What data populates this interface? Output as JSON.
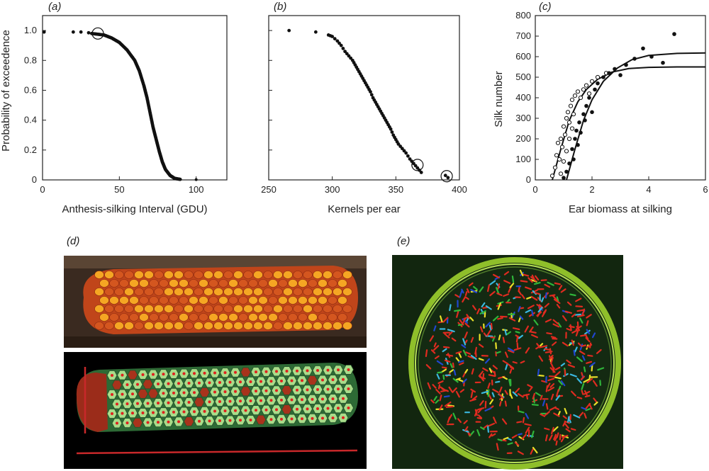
{
  "panels": {
    "a": "(a)",
    "b": "(b)",
    "c": "(c)",
    "d": "(d)",
    "e": "(e)"
  },
  "chart_data": [
    {
      "type": "scatter",
      "panel": "a",
      "xlabel": "Anthesis-silking Interval (GDU)",
      "ylabel": "Probability of exceedence",
      "xlim": [
        0,
        120
      ],
      "ylim": [
        0,
        1.1
      ],
      "xticks": [
        "0",
        "50",
        "100"
      ],
      "yticks": [
        "0",
        "0.2",
        "0.4",
        "0.6",
        "0.8",
        "1.0"
      ],
      "sparse_points": [
        [
          1,
          0.99
        ],
        [
          20,
          0.99
        ],
        [
          25,
          0.99
        ],
        [
          30,
          0.985
        ]
      ],
      "dense_curve": [
        [
          32,
          0.98
        ],
        [
          40,
          0.97
        ],
        [
          45,
          0.95
        ],
        [
          50,
          0.92
        ],
        [
          55,
          0.87
        ],
        [
          60,
          0.8
        ],
        [
          63,
          0.73
        ],
        [
          66,
          0.63
        ],
        [
          68,
          0.55
        ],
        [
          70,
          0.45
        ],
        [
          72,
          0.35
        ],
        [
          74,
          0.27
        ],
        [
          76,
          0.19
        ],
        [
          78,
          0.12
        ],
        [
          80,
          0.07
        ],
        [
          83,
          0.03
        ],
        [
          86,
          0.01
        ],
        [
          90,
          0.003
        ]
      ],
      "outliers": [
        [
          100,
          0.002
        ]
      ],
      "circled": [
        [
          36,
          0.98
        ]
      ]
    },
    {
      "type": "scatter",
      "panel": "b",
      "xlabel": "Kernels per ear",
      "ylabel": "",
      "xlim": [
        250,
        400
      ],
      "ylim": [
        0,
        1.1
      ],
      "xticks": [
        "250",
        "300",
        "350",
        "400"
      ],
      "points": [
        [
          266,
          1.0
        ],
        [
          287,
          0.99
        ],
        [
          297,
          0.97
        ],
        [
          300,
          0.96
        ],
        [
          304,
          0.93
        ],
        [
          307,
          0.9
        ],
        [
          310,
          0.86
        ],
        [
          313,
          0.83
        ],
        [
          316,
          0.8
        ],
        [
          318,
          0.77
        ],
        [
          320,
          0.74
        ],
        [
          322,
          0.71
        ],
        [
          324,
          0.68
        ],
        [
          326,
          0.65
        ],
        [
          328,
          0.62
        ],
        [
          330,
          0.59
        ],
        [
          332,
          0.55
        ],
        [
          334,
          0.52
        ],
        [
          336,
          0.49
        ],
        [
          338,
          0.46
        ],
        [
          340,
          0.43
        ],
        [
          342,
          0.4
        ],
        [
          344,
          0.37
        ],
        [
          346,
          0.34
        ],
        [
          348,
          0.3
        ],
        [
          350,
          0.27
        ],
        [
          352,
          0.24
        ],
        [
          355,
          0.21
        ],
        [
          358,
          0.18
        ],
        [
          361,
          0.14
        ],
        [
          364,
          0.11
        ],
        [
          367,
          0.08
        ],
        [
          370,
          0.05
        ],
        [
          389,
          0.03
        ],
        [
          391,
          0.015
        ]
      ],
      "circled": [
        [
          367,
          0.1
        ],
        [
          390,
          0.025
        ]
      ]
    },
    {
      "type": "scatter",
      "panel": "c",
      "xlabel": "Ear biomass at silking",
      "ylabel": "Silk number",
      "xlim": [
        0,
        6
      ],
      "ylim": [
        0,
        800
      ],
      "xticks": [
        "0",
        "2",
        "4",
        "6"
      ],
      "yticks": [
        "0",
        "100",
        "200",
        "300",
        "400",
        "500",
        "600",
        "700",
        "800"
      ],
      "series": [
        {
          "marker": "open",
          "points": [
            [
              0.6,
              20
            ],
            [
              0.7,
              60
            ],
            [
              0.75,
              120
            ],
            [
              0.8,
              180
            ],
            [
              0.85,
              100
            ],
            [
              0.9,
              200
            ],
            [
              0.95,
              160
            ],
            [
              1.0,
              260
            ],
            [
              1.05,
              220
            ],
            [
              1.1,
              300
            ],
            [
              1.15,
              330
            ],
            [
              1.2,
              280
            ],
            [
              1.25,
              360
            ],
            [
              1.3,
              390
            ],
            [
              1.35,
              320
            ],
            [
              1.4,
              410
            ],
            [
              1.5,
              430
            ],
            [
              1.6,
              400
            ],
            [
              1.7,
              440
            ],
            [
              1.8,
              460
            ],
            [
              1.9,
              420
            ],
            [
              2.0,
              480
            ],
            [
              2.2,
              500
            ],
            [
              2.5,
              520
            ],
            [
              0.9,
              30
            ],
            [
              1.0,
              90
            ],
            [
              1.1,
              140
            ],
            [
              1.2,
              200
            ],
            [
              1.3,
              250
            ]
          ],
          "fit": [
            [
              0.6,
              0
            ],
            [
              0.9,
              150
            ],
            [
              1.2,
              290
            ],
            [
              1.5,
              380
            ],
            [
              1.8,
              440
            ],
            [
              2.2,
              490
            ],
            [
              2.7,
              525
            ],
            [
              3.3,
              542
            ],
            [
              4.0,
              548
            ],
            [
              5.0,
              550
            ],
            [
              6.0,
              550
            ]
          ]
        },
        {
          "marker": "filled",
          "points": [
            [
              1.0,
              10
            ],
            [
              1.1,
              40
            ],
            [
              1.2,
              80
            ],
            [
              1.3,
              150
            ],
            [
              1.35,
              100
            ],
            [
              1.4,
              200
            ],
            [
              1.45,
              240
            ],
            [
              1.5,
              170
            ],
            [
              1.55,
              280
            ],
            [
              1.6,
              230
            ],
            [
              1.7,
              320
            ],
            [
              1.75,
              290
            ],
            [
              1.8,
              360
            ],
            [
              1.9,
              400
            ],
            [
              2.0,
              330
            ],
            [
              2.1,
              440
            ],
            [
              2.2,
              470
            ],
            [
              2.4,
              500
            ],
            [
              2.6,
              520
            ],
            [
              2.8,
              540
            ],
            [
              3.0,
              510
            ],
            [
              3.2,
              560
            ],
            [
              3.5,
              590
            ],
            [
              3.8,
              640
            ],
            [
              4.1,
              600
            ],
            [
              4.5,
              570
            ],
            [
              4.9,
              710
            ]
          ],
          "fit": [
            [
              1.1,
              0
            ],
            [
              1.4,
              150
            ],
            [
              1.7,
              290
            ],
            [
              2.0,
              390
            ],
            [
              2.4,
              480
            ],
            [
              2.9,
              545
            ],
            [
              3.4,
              585
            ],
            [
              4.0,
              606
            ],
            [
              5.0,
              616
            ],
            [
              6.0,
              618
            ]
          ]
        }
      ]
    }
  ],
  "images": {
    "d_top": "Photograph of a maize ear with orange and yellow kernels",
    "d_bottom": "Segmented maize ear with green kernel regions and red centroid dots",
    "e": "Petri dish on green background with red, yellow, green, cyan and blue seedlings"
  }
}
